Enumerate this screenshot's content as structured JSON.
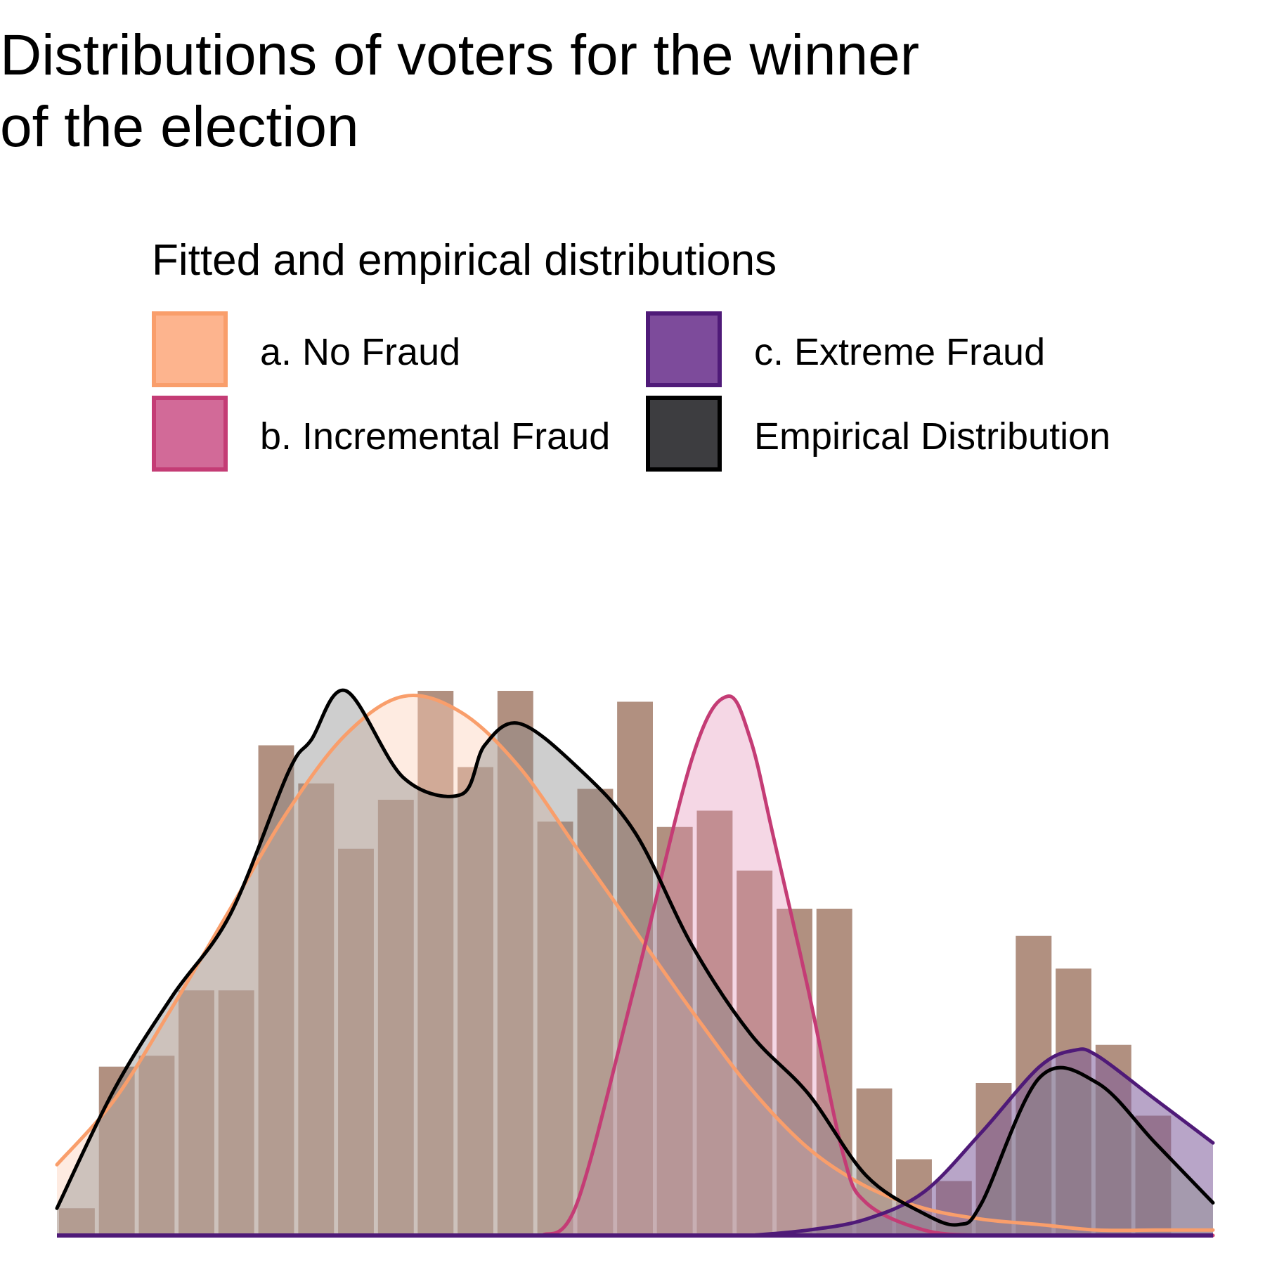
{
  "title_lines": [
    "Distributions of voters for the winner",
    "of the election"
  ],
  "legend": {
    "title": "Fitted and empirical distributions",
    "position": "top",
    "items": [
      {
        "label": "a. No Fraud",
        "fill": "#fdb48e",
        "stroke": "#f99e6b"
      },
      {
        "label": "b. Incremental Fraud",
        "fill": "#d26a98",
        "stroke": "#c43c75"
      },
      {
        "label": "c. Extreme Fraud",
        "fill": "#7d4b9b",
        "stroke": "#4f1a78"
      },
      {
        "label": "Empirical Distribution",
        "fill": "#3d3d40",
        "stroke": "#000000"
      }
    ]
  },
  "chart_data": {
    "type": "area",
    "title": "Distributions of voters for the winner of the election",
    "xlabel": "",
    "ylabel": "",
    "axes_visible": false,
    "grid": false,
    "xlim": [
      0,
      1
    ],
    "ylim": [
      0,
      1
    ],
    "histograms": [
      {
        "name": "Empirical Distribution",
        "bin_width": 0.0345,
        "bins": [
          0,
          0.0345,
          0.069,
          0.1034,
          0.1379,
          0.1724,
          0.2069,
          0.2414,
          0.2759,
          0.3103,
          0.3448,
          0.3793,
          0.4138,
          0.4483,
          0.4828,
          0.5172,
          0.5517,
          0.5862,
          0.6207,
          0.6552,
          0.6897,
          0.7241,
          0.7586,
          0.7931,
          0.8276,
          0.8621,
          0.8966,
          0.931,
          0.9655
        ],
        "values": [
          0.05,
          0.31,
          0.33,
          0.45,
          0.45,
          0.9,
          0.83,
          0.71,
          0.8,
          1.0,
          0.86,
          1.0,
          0.76,
          0.82,
          0.98,
          0.75,
          0.78,
          0.67,
          0.6,
          0.6,
          0.27,
          0.14,
          0.1,
          0.28,
          0.55,
          0.49,
          0.35,
          0.22,
          0.0
        ],
        "color": "#3d3d40"
      },
      {
        "name": "a. No Fraud",
        "bin_width": 0.0345,
        "bins": [
          0,
          0.0345,
          0.069,
          0.1034,
          0.1379,
          0.1724,
          0.2069,
          0.2414,
          0.2759,
          0.3103,
          0.3448,
          0.3793,
          0.4138,
          0.4483,
          0.4828,
          0.5172,
          0.5517,
          0.5862,
          0.6207,
          0.6552,
          0.6897,
          0.7241,
          0.7586,
          0.7931,
          0.8276,
          0.8621,
          0.8966,
          0.931,
          0.9655
        ],
        "values": [
          0.05,
          0.31,
          0.33,
          0.45,
          0.45,
          0.9,
          0.83,
          0.71,
          0.8,
          1.0,
          0.86,
          1.0,
          0.76,
          0.82,
          0.98,
          0.75,
          0.78,
          0.67,
          0.6,
          0.6,
          0.27,
          0.14,
          0.1,
          0.28,
          0.55,
          0.49,
          0.35,
          0.22,
          0.0
        ],
        "color": "#fdb48e"
      }
    ],
    "densities": [
      {
        "name": "a. No Fraud",
        "x": [
          0,
          0.05,
          0.1,
          0.15,
          0.2,
          0.25,
          0.3,
          0.35,
          0.4,
          0.45,
          0.5,
          0.55,
          0.6,
          0.65,
          0.7,
          0.75,
          0.8,
          0.85,
          0.9,
          0.95,
          1.0
        ],
        "y": [
          0.13,
          0.25,
          0.42,
          0.6,
          0.78,
          0.92,
          0.99,
          0.96,
          0.86,
          0.71,
          0.56,
          0.41,
          0.27,
          0.16,
          0.09,
          0.05,
          0.03,
          0.02,
          0.01,
          0.01,
          0.01
        ]
      },
      {
        "name": "b. Incremental Fraud",
        "x": [
          0.42,
          0.45,
          0.5,
          0.55,
          0.58,
          0.6,
          0.62,
          0.65,
          0.68,
          0.7,
          0.75,
          0.8,
          0.85,
          1.0
        ],
        "y": [
          0.0,
          0.06,
          0.46,
          0.88,
          0.99,
          0.91,
          0.73,
          0.45,
          0.15,
          0.06,
          0.01,
          0.0,
          0.0,
          0.0
        ],
        "fill_under": true
      },
      {
        "name": "c. Extreme Fraud",
        "x": [
          0.6,
          0.65,
          0.7,
          0.75,
          0.8,
          0.85,
          0.88,
          0.9,
          0.95,
          1.0
        ],
        "y": [
          0.0,
          0.01,
          0.03,
          0.08,
          0.19,
          0.31,
          0.34,
          0.33,
          0.25,
          0.17
        ]
      },
      {
        "name": "Empirical Distribution",
        "x": [
          0,
          0.05,
          0.1,
          0.15,
          0.2,
          0.22,
          0.25,
          0.3,
          0.35,
          0.37,
          0.4,
          0.45,
          0.5,
          0.55,
          0.6,
          0.65,
          0.7,
          0.75,
          0.78,
          0.8,
          0.85,
          0.9,
          0.95,
          1.0
        ],
        "y": [
          0.05,
          0.27,
          0.44,
          0.59,
          0.85,
          0.91,
          1.0,
          0.84,
          0.81,
          0.9,
          0.94,
          0.86,
          0.74,
          0.53,
          0.37,
          0.26,
          0.11,
          0.04,
          0.02,
          0.06,
          0.29,
          0.28,
          0.17,
          0.06
        ]
      }
    ]
  }
}
